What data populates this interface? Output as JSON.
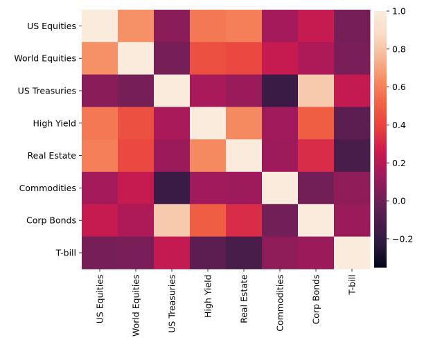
{
  "chart_data": {
    "type": "heatmap",
    "title": "",
    "xlabel": "",
    "ylabel": "",
    "labels": [
      "US Equities",
      "World Equities",
      "US Treasuries",
      "High Yield",
      "Real Estate",
      "Commodities",
      "Corp Bonds",
      "T-bill"
    ],
    "matrix": [
      [
        1.0,
        0.65,
        0.08,
        0.58,
        0.6,
        0.15,
        0.25,
        0.03
      ],
      [
        0.65,
        1.0,
        0.03,
        0.45,
        0.42,
        0.25,
        0.18,
        0.04
      ],
      [
        0.08,
        0.03,
        1.0,
        0.16,
        0.12,
        -0.17,
        0.82,
        0.24
      ],
      [
        0.58,
        0.45,
        0.16,
        1.0,
        0.63,
        0.14,
        0.5,
        -0.05
      ],
      [
        0.6,
        0.42,
        0.12,
        0.63,
        1.0,
        0.13,
        0.32,
        -0.12
      ],
      [
        0.15,
        0.25,
        -0.17,
        0.14,
        0.13,
        1.0,
        0.02,
        0.09
      ],
      [
        0.25,
        0.18,
        0.82,
        0.5,
        0.32,
        0.02,
        1.0,
        0.12
      ],
      [
        0.03,
        0.04,
        0.24,
        -0.05,
        -0.12,
        0.09,
        0.12,
        1.0
      ]
    ],
    "colorbar": {
      "min": -0.35,
      "max": 1.0,
      "ticks": [
        -0.2,
        0.0,
        0.2,
        0.4,
        0.6,
        0.8,
        1.0
      ],
      "tick_labels": [
        "−0.2",
        "0.0",
        "0.2",
        "0.4",
        "0.6",
        "0.8",
        "1.0"
      ],
      "colormap": "rocket",
      "stops": [
        "#03051a",
        "#2b1a3f",
        "#4c1d4b",
        "#711f57",
        "#a11a5b",
        "#cb1b4f",
        "#e83f3f",
        "#f06043",
        "#f58a5f",
        "#f7b592",
        "#f9dcc4",
        "#faebdd"
      ]
    }
  }
}
